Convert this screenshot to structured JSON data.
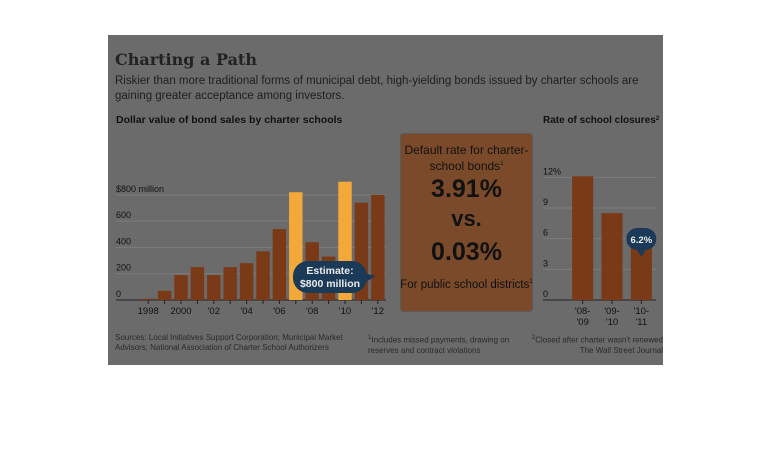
{
  "header": {
    "title": "Charting a Path",
    "dek": "Riskier than more traditional forms of municipal debt, high-yielding bonds issued by charter schools are gaining greater acceptance among investors."
  },
  "left_chart": {
    "title": "Dollar value of bond sales by charter schools",
    "annotation": "Estimate: $800 million"
  },
  "center_box": {
    "top_label": "Default rate for charter-school bonds",
    "value1": "3.91%",
    "vs": "vs.",
    "value2": "0.03%",
    "bottom_label": "For public school districts"
  },
  "right_chart": {
    "title": "Rate of school closures",
    "annotation": "6.2%"
  },
  "footer": {
    "sources": "Sources: Local Initiatives Support Corporation; Municipal Market Advisors; National Association of Charter School Authorizers",
    "note1": "Includes missed payments, drawing on reserves and contract violations",
    "note2": "Closed after charter wasn't renewed",
    "credit": "The Wall Street Journal"
  },
  "colors": {
    "bar": "#7a3a17",
    "bar_highlight": "#f3a93a",
    "callout": "#1b3a57",
    "panel_bg": "#6b6b6b"
  },
  "chart_data": [
    {
      "type": "bar",
      "title": "Dollar value of bond sales by charter schools",
      "categories": [
        "1998",
        "1999",
        "2000",
        "2001",
        "2002",
        "2003",
        "2004",
        "2005",
        "2006",
        "2007",
        "2008",
        "2009",
        "2010",
        "2011",
        "2012"
      ],
      "tick_labels": [
        "1998",
        "",
        "2000",
        "",
        "'02",
        "",
        "'04",
        "",
        "'06",
        "",
        "'08",
        "",
        "'10",
        "",
        "'12"
      ],
      "values": [
        10,
        70,
        190,
        250,
        190,
        250,
        280,
        370,
        540,
        820,
        440,
        330,
        900,
        740,
        800
      ],
      "highlighted": [
        9,
        12
      ],
      "yticks": [
        0,
        200,
        400,
        600,
        800
      ],
      "ytick_labels": [
        "0",
        "200",
        "400",
        "600",
        "$800 million"
      ],
      "ylim": [
        0,
        1050
      ],
      "annotation": "Estimate: $800 million"
    },
    {
      "type": "bar",
      "title": "Rate of school closures",
      "categories": [
        "'08-'09",
        "'09-'10",
        "'10-'11"
      ],
      "values": [
        12.1,
        8.5,
        6.2
      ],
      "yticks": [
        0,
        3,
        6,
        9,
        12
      ],
      "ytick_labels": [
        "0",
        "3",
        "6",
        "9",
        "12%"
      ],
      "ylim": [
        0,
        13.5
      ],
      "annotation": "6.2%"
    }
  ]
}
